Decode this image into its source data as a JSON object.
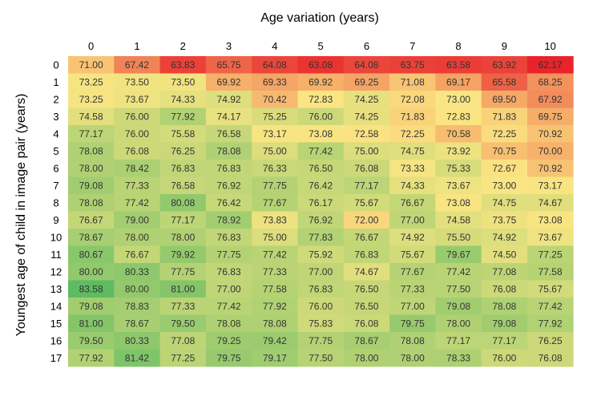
{
  "chart_data": {
    "type": "heatmap",
    "title": "Age variation (years)",
    "xlabel": "Age variation (years)",
    "ylabel": "Youngest age of child in image pair (years)",
    "x_categories": [
      "0",
      "1",
      "2",
      "3",
      "4",
      "5",
      "6",
      "7",
      "8",
      "9",
      "10"
    ],
    "y_categories": [
      "0",
      "1",
      "2",
      "3",
      "4",
      "5",
      "6",
      "7",
      "8",
      "9",
      "10",
      "11",
      "12",
      "13",
      "14",
      "15",
      "16",
      "17"
    ],
    "colorscale": {
      "low": "#e8232a",
      "mid": "#fbe683",
      "high": "#5fbb62"
    },
    "values": [
      [
        "71.00",
        "67.42",
        "63.83",
        "65.75",
        "64.08",
        "63.08",
        "64.08",
        "63.75",
        "63.58",
        "63.92",
        "62.17"
      ],
      [
        "73.25",
        "73.50",
        "73.50",
        "69.92",
        "69.33",
        "69.92",
        "69.25",
        "71.08",
        "69.17",
        "65.58",
        "68.25"
      ],
      [
        "73.25",
        "73.67",
        "74.33",
        "74.92",
        "70.42",
        "72.83",
        "74.25",
        "72.08",
        "73.00",
        "69.50",
        "67.92"
      ],
      [
        "74.58",
        "76.00",
        "77.92",
        "74.17",
        "75.25",
        "76.00",
        "74.25",
        "71.83",
        "72.83",
        "71.83",
        "69.75"
      ],
      [
        "77.17",
        "76.00",
        "75.58",
        "76.58",
        "73.17",
        "73.08",
        "72.58",
        "72.25",
        "70.58",
        "72.25",
        "70.92"
      ],
      [
        "78.08",
        "76.08",
        "76.25",
        "78.08",
        "75.00",
        "77.42",
        "75.00",
        "74.75",
        "73.92",
        "70.75",
        "70.00"
      ],
      [
        "78.00",
        "78.42",
        "76.83",
        "76.83",
        "76.33",
        "76.50",
        "76.08",
        "73.33",
        "75.33",
        "72.67",
        "70.92"
      ],
      [
        "79.08",
        "77.33",
        "76.58",
        "76.92",
        "77.75",
        "76.42",
        "77.17",
        "74.33",
        "73.67",
        "73.00",
        "73.17"
      ],
      [
        "78.08",
        "77.42",
        "80.08",
        "76.42",
        "77.67",
        "76.17",
        "75.67",
        "76.67",
        "73.08",
        "74.75",
        "74.67"
      ],
      [
        "76.67",
        "79.00",
        "77.17",
        "78.92",
        "73.83",
        "76.92",
        "72.00",
        "77.00",
        "74.58",
        "73.75",
        "73.08"
      ],
      [
        "78.67",
        "78.00",
        "78.00",
        "76.83",
        "75.00",
        "77.83",
        "76.67",
        "74.92",
        "75.50",
        "74.92",
        "73.67"
      ],
      [
        "80.67",
        "76.67",
        "79.92",
        "77.75",
        "77.42",
        "75.92",
        "76.83",
        "75.67",
        "79.67",
        "74.50",
        "77.25"
      ],
      [
        "80.00",
        "80.33",
        "77.75",
        "76.83",
        "77.33",
        "77.00",
        "74.67",
        "77.67",
        "77.42",
        "77.08",
        "77.58"
      ],
      [
        "83.58",
        "80.00",
        "81.00",
        "77.00",
        "77.58",
        "76.83",
        "76.50",
        "77.33",
        "77.50",
        "76.08",
        "75.67"
      ],
      [
        "79.08",
        "78.83",
        "77.33",
        "77.42",
        "77.92",
        "76.00",
        "76.50",
        "77.00",
        "79.08",
        "78.08",
        "77.42"
      ],
      [
        "81.00",
        "78.67",
        "79.50",
        "78.08",
        "78.08",
        "75.83",
        "76.08",
        "79.75",
        "78.00",
        "79.08",
        "77.92"
      ],
      [
        "79.50",
        "80.33",
        "77.08",
        "79.25",
        "79.42",
        "77.75",
        "78.67",
        "78.08",
        "77.17",
        "77.17",
        "76.25"
      ],
      [
        "77.92",
        "81.42",
        "77.25",
        "79.75",
        "79.17",
        "77.50",
        "78.00",
        "78.00",
        "78.33",
        "76.00",
        "76.08"
      ]
    ]
  }
}
